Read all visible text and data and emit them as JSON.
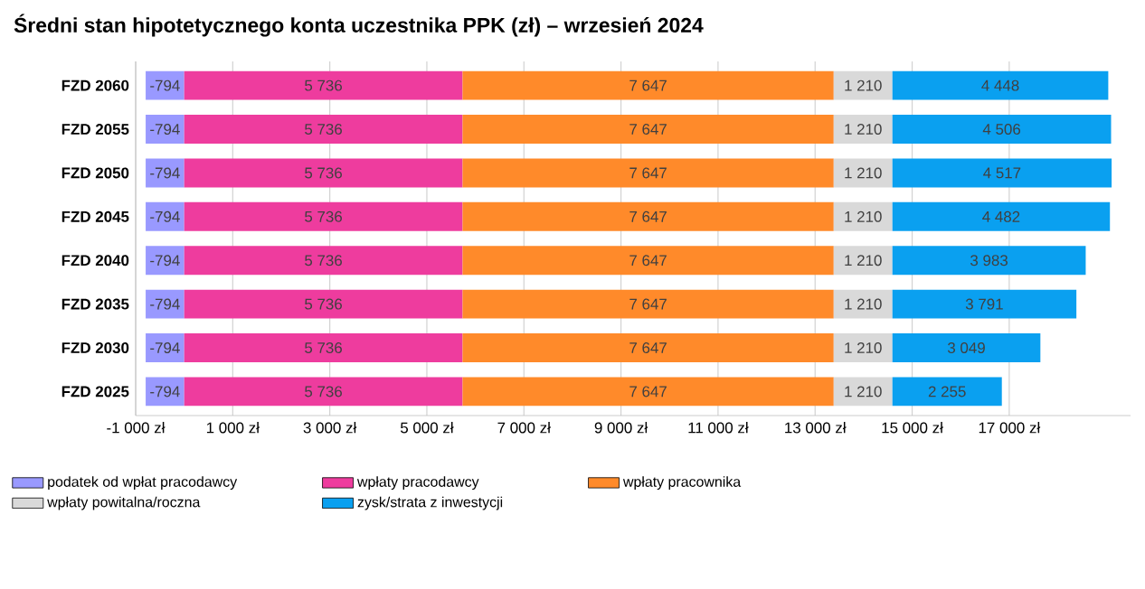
{
  "chart_data": {
    "type": "bar",
    "orientation": "horizontal",
    "stacked": true,
    "title": "Średni stan hipotetycznego konta uczestnika PPK (zł) – wrzesień 2024",
    "categories": [
      "FZD 2060",
      "FZD 2055",
      "FZD 2050",
      "FZD 2045",
      "FZD 2040",
      "FZD 2035",
      "FZD 2030",
      "FZD 2025"
    ],
    "series": [
      {
        "name": "podatek od wpłat pracodawcy",
        "color": "#9999ff",
        "values": [
          -794,
          -794,
          -794,
          -794,
          -794,
          -794,
          -794,
          -794
        ],
        "value_labels": [
          "-794",
          "-794",
          "-794",
          "-794",
          "-794",
          "-794",
          "-794",
          "-794"
        ]
      },
      {
        "name": "wpłaty pracodawcy",
        "color": "#ee3c9e",
        "values": [
          5736,
          5736,
          5736,
          5736,
          5736,
          5736,
          5736,
          5736
        ],
        "value_labels": [
          "5 736",
          "5 736",
          "5 736",
          "5 736",
          "5 736",
          "5 736",
          "5 736",
          "5 736"
        ]
      },
      {
        "name": "wpłaty pracownika",
        "color": "#ff8a2a",
        "values": [
          7647,
          7647,
          7647,
          7647,
          7647,
          7647,
          7647,
          7647
        ],
        "value_labels": [
          "7 647",
          "7 647",
          "7 647",
          "7 647",
          "7 647",
          "7 647",
          "7 647",
          "7 647"
        ]
      },
      {
        "name": "wpłaty powitalna/roczna",
        "color": "#d9d9d9",
        "values": [
          1210,
          1210,
          1210,
          1210,
          1210,
          1210,
          1210,
          1210
        ],
        "value_labels": [
          "1 210",
          "1 210",
          "1 210",
          "1 210",
          "1 210",
          "1 210",
          "1 210",
          "1 210"
        ]
      },
      {
        "name": "zysk/strata z inwestycji",
        "color": "#0aa0f0",
        "values": [
          4448,
          4506,
          4517,
          4482,
          3983,
          3791,
          3049,
          2255
        ],
        "value_labels": [
          "4 448",
          "4 506",
          "4 517",
          "4 482",
          "3 983",
          "3 791",
          "3 049",
          "2 255"
        ]
      }
    ],
    "xlim": [
      -1000,
      19500
    ],
    "xticks": [
      {
        "value": -1000,
        "label": "-1 000 zł"
      },
      {
        "value": 1000,
        "label": "1 000 zł"
      },
      {
        "value": 3000,
        "label": "3 000 zł"
      },
      {
        "value": 5000,
        "label": "5 000 zł"
      },
      {
        "value": 7000,
        "label": "7 000 zł"
      },
      {
        "value": 9000,
        "label": "9 000 zł"
      },
      {
        "value": 11000,
        "label": "11 000 zł"
      },
      {
        "value": 13000,
        "label": "13 000 zł"
      },
      {
        "value": 15000,
        "label": "15 000 zł"
      },
      {
        "value": 17000,
        "label": "17 000 zł"
      }
    ],
    "grid": "x",
    "legend": "bottom"
  }
}
